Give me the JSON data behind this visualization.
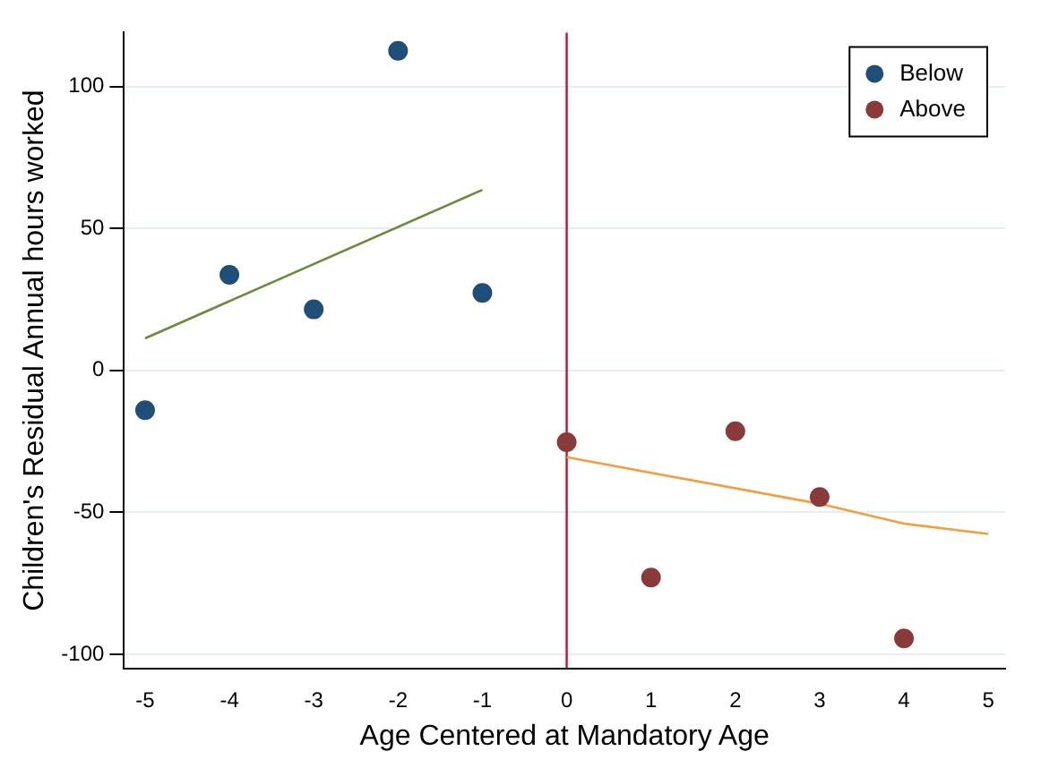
{
  "chart_data": {
    "type": "scatter",
    "xlabel": "Age Centered at Mandatory Age",
    "ylabel": "Children's Residual Annual hours worked",
    "xlim": [
      -5.25,
      5.2
    ],
    "xticks": [
      -5,
      -4,
      -3,
      -2,
      -1,
      0,
      1,
      2,
      3,
      4,
      5
    ],
    "ylim": [
      -105,
      119
    ],
    "yticks": [
      -100,
      -50,
      0,
      50,
      100
    ],
    "grid": "y",
    "legend": "top right",
    "marker": "circle",
    "series": [
      {
        "name": "Below",
        "color": "#1f4e79",
        "x": [
          -5,
          -4,
          -3,
          -2,
          -1
        ],
        "values": [
          -14,
          33.7,
          21.5,
          112.6,
          27.3
        ]
      },
      {
        "name": "Above",
        "color": "#8b3a3a",
        "x": [
          0,
          1,
          2,
          3,
          4
        ],
        "values": [
          -25.3,
          -73,
          -21.4,
          -44.6,
          -94.4
        ]
      },
      {
        "type": "line",
        "color": "#6b8a3a",
        "x": [
          -5,
          -1
        ],
        "values": [
          11.3,
          63.6
        ],
        "marker": "none"
      },
      {
        "type": "line",
        "color": "#f0a040",
        "x": [
          0,
          3,
          4,
          5
        ],
        "values": [
          -30.6,
          -47,
          -54,
          -57.6
        ],
        "marker": "none"
      }
    ],
    "ref_lines": [
      {
        "axis": "x",
        "value": 0,
        "color": "#c8102e"
      }
    ]
  }
}
